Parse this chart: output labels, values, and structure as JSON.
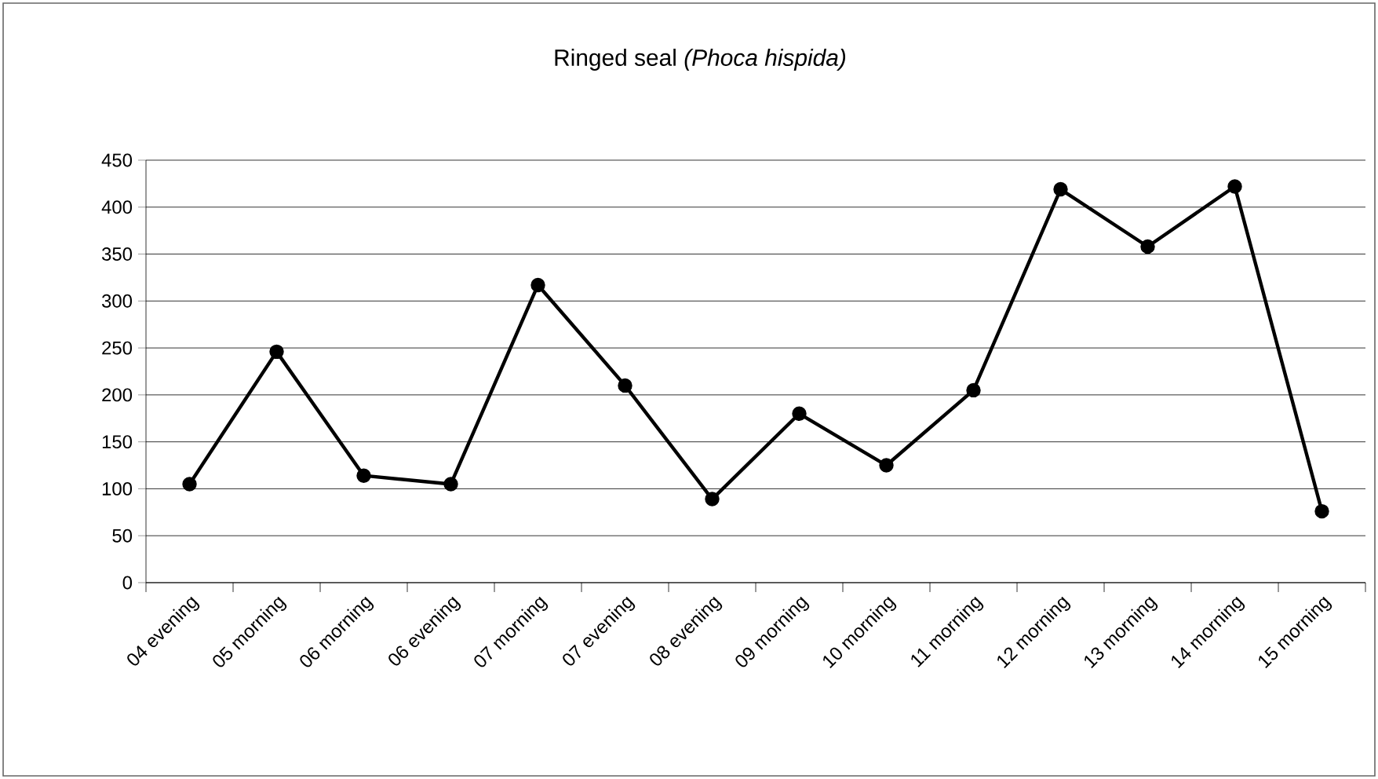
{
  "chart_data": {
    "type": "line",
    "title": "Ringed seal *(Phoca hispida)*",
    "categories": [
      "04 evening",
      "05 morning",
      "06 morning",
      "06 evening",
      "07 morning",
      "07 evening",
      "08 evening",
      "09 morning",
      "10 morning",
      "11 morning",
      "12 morning",
      "13 morning",
      "14 morning",
      "15 morning"
    ],
    "series": [
      {
        "color": "#000000",
        "values": [
          105,
          246,
          114,
          105,
          317,
          210,
          89,
          180,
          125,
          205,
          419,
          358,
          422,
          76
        ]
      }
    ],
    "ylim": [
      0,
      450
    ],
    "yticks": [
      0,
      50,
      100,
      150,
      200,
      250,
      300,
      350,
      400,
      450
    ],
    "grid": "y",
    "marker": "circle",
    "line_style": "solid"
  }
}
